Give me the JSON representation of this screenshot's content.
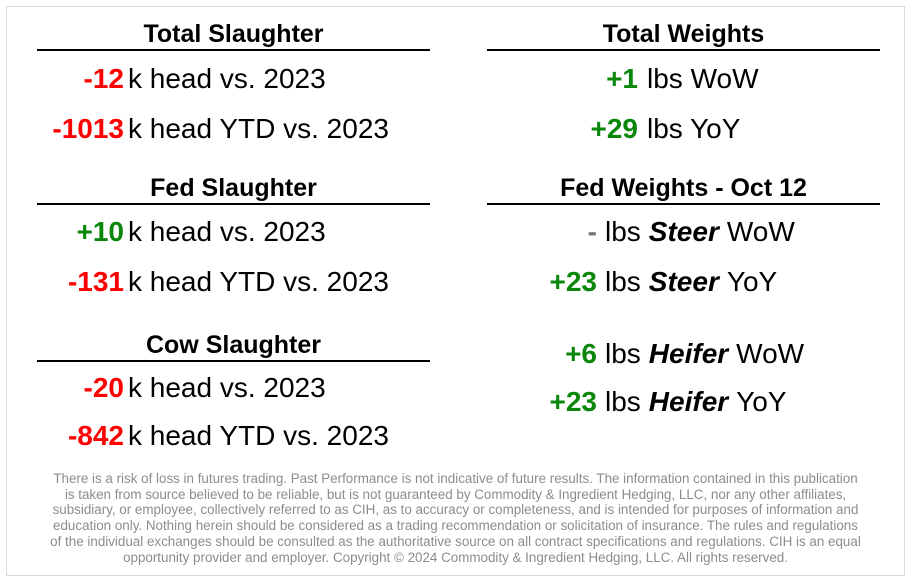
{
  "colors": {
    "negative": "#ff0000",
    "positive": "#0a870a",
    "neutral": "#757575",
    "text": "#000000",
    "frame_border": "#d9d9d9",
    "disclaimer_text": "#8c8c8c"
  },
  "columns": {
    "left": {
      "sections": [
        {
          "title": "Total Slaughter",
          "rows": [
            {
              "value": "-12",
              "value_color": "red",
              "label": "k head vs. 2023"
            },
            {
              "value": "-1013",
              "value_color": "red",
              "label": "k head YTD vs. 2023"
            }
          ]
        },
        {
          "title": "Fed Slaughter",
          "rows": [
            {
              "value": "+10",
              "value_color": "green",
              "label": "k head vs. 2023"
            },
            {
              "value": "-131",
              "value_color": "red",
              "label": "k head YTD vs. 2023"
            }
          ]
        },
        {
          "title": "Cow Slaughter",
          "rows": [
            {
              "value": "-20",
              "value_color": "red",
              "label": "k head vs. 2023"
            },
            {
              "value": "-842",
              "value_color": "red",
              "label": "k head YTD vs. 2023"
            }
          ]
        }
      ]
    },
    "right": {
      "sections": [
        {
          "title": "Total Weights",
          "rows": [
            {
              "value": "+1",
              "value_color": "green",
              "label": "lbs WoW"
            },
            {
              "value": "+29",
              "value_color": "green",
              "label": "lbs YoY"
            }
          ]
        },
        {
          "title": "Fed Weights - Oct 12",
          "rows": [
            {
              "value": "-",
              "value_color": "gray",
              "label_pre": "lbs",
              "label_em": "Steer",
              "label_post": "WoW"
            },
            {
              "value": "+23",
              "value_color": "green",
              "label_pre": "lbs",
              "label_em": "Steer",
              "label_post": "YoY"
            }
          ]
        },
        {
          "title": "",
          "rows": [
            {
              "value": "+6",
              "value_color": "green",
              "label_pre": "lbs",
              "label_em": "Heifer",
              "label_post": "WoW"
            },
            {
              "value": "+23",
              "value_color": "green",
              "label_pre": "lbs",
              "label_em": "Heifer",
              "label_post": "YoY"
            }
          ]
        }
      ]
    }
  },
  "disclaimer": {
    "lines": [
      "There is a risk of loss in futures trading. Past Performance is not indicative of future results. The information contained in this publication",
      "is taken from source believed to be reliable, but is not guaranteed by Commodity & Ingredient Hedging, LLC, nor any other affiliates,",
      "subsidiary, or employee, collectively referred to as CIH, as to accuracy or completeness, and is intended for purposes of information and",
      "education only. Nothing herein should be considered as a trading recommendation or solicitation of insurance. The rules and regulations",
      "of the individual exchanges should be consulted as the authoritative source on all contract specifications and regulations. CIH is an equal",
      "opportunity provider and employer. Copyright © 2024 Commodity & Ingredient Hedging, LLC. All rights reserved."
    ]
  }
}
